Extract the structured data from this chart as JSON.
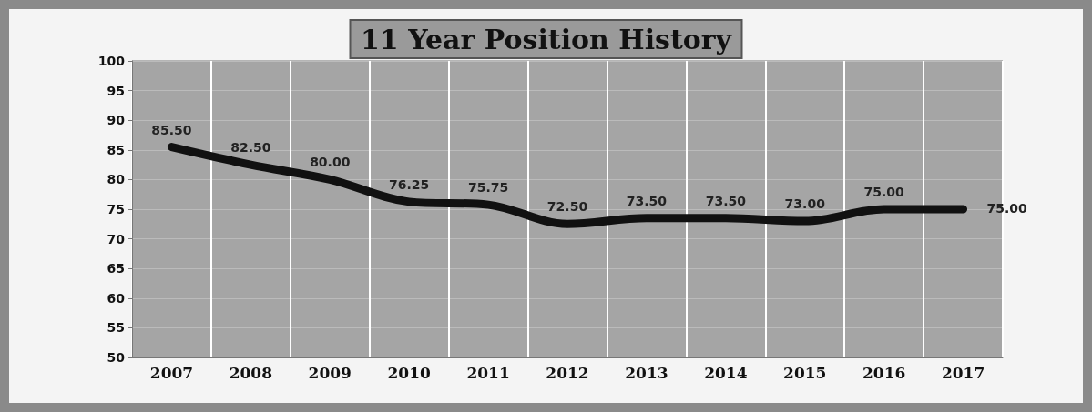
{
  "chart_data": {
    "type": "line",
    "title": "11 Year Position History",
    "categories": [
      "2007",
      "2008",
      "2009",
      "2010",
      "2011",
      "2012",
      "2013",
      "2014",
      "2015",
      "2016",
      "2017"
    ],
    "series": [
      {
        "color": "#111111",
        "values": [
          85.5,
          82.5,
          80,
          76.25,
          75.75,
          72.5,
          73.5,
          73.5,
          73,
          75,
          75
        ],
        "value_labels": [
          "85.50",
          "82.50",
          "80.00",
          "76.25",
          "75.75",
          "72.50",
          "73.50",
          "73.50",
          "73.00",
          "75.00",
          "75.00"
        ]
      }
    ],
    "ylim": [
      50,
      100
    ],
    "yticks": [
      50,
      55,
      60,
      65,
      70,
      75,
      80,
      85,
      90,
      95,
      100
    ],
    "grid": true,
    "marker": "none",
    "line_style": "solid"
  }
}
